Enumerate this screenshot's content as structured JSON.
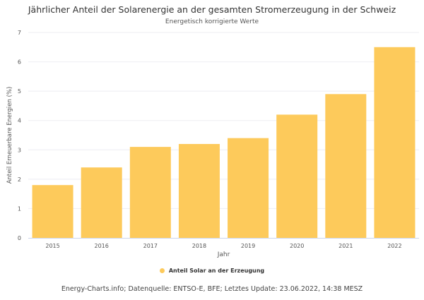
{
  "chart_data": {
    "type": "bar",
    "title": "Jährlicher Anteil der Solarenergie an der gesamten Stromerzeugung in der Schweiz",
    "subtitle": "Energetisch korrigierte Werte",
    "xlabel": "Jahr",
    "ylabel": "Anteil Erneuerbare Energien (%)",
    "categories": [
      "2015",
      "2016",
      "2017",
      "2018",
      "2019",
      "2020",
      "2021",
      "2022"
    ],
    "series": [
      {
        "name": "Anteil Solar an der Erzeugung",
        "color": "#fdca5b",
        "values": [
          1.8,
          2.4,
          3.1,
          3.2,
          3.4,
          4.2,
          4.9,
          6.5
        ]
      }
    ],
    "ylim": [
      0,
      7
    ],
    "yticks": [
      0,
      1,
      2,
      3,
      4,
      5,
      6,
      7
    ],
    "grid": true,
    "legend_position": "bottom-center"
  },
  "credits": "Energy-Charts.info; Datenquelle: ENTSO-E, BFE; Letztes Update: 23.06.2022, 14:38 MESZ"
}
